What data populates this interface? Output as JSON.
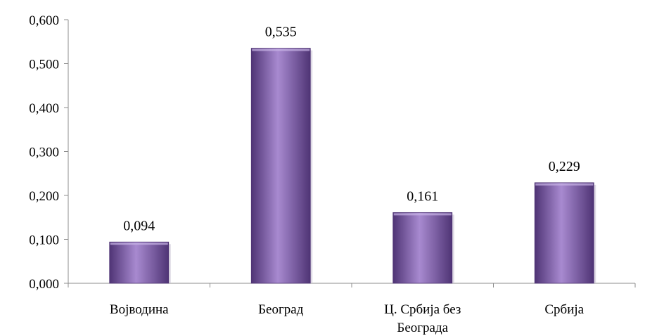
{
  "chart_data": {
    "type": "bar",
    "categories": [
      "Војводина",
      "Београд",
      "Ц. Србија без Београда",
      "Србија"
    ],
    "category_lines": [
      [
        "Војводина"
      ],
      [
        "Београд"
      ],
      [
        "Ц. Србија без",
        "Београда"
      ],
      [
        "Србија"
      ]
    ],
    "values": [
      0.094,
      0.535,
      0.161,
      0.229
    ],
    "data_labels": [
      "0,094",
      "0,535",
      "0,161",
      "0,229"
    ],
    "ylim": [
      0,
      0.6
    ],
    "yticks": [
      0,
      0.1,
      0.2,
      0.3,
      0.4,
      0.5,
      0.6
    ],
    "ytick_labels": [
      "0,000",
      "0,100",
      "0,200",
      "0,300",
      "0,400",
      "0,500",
      "0,600"
    ],
    "grid": false,
    "legend": "none",
    "bar_color": "#7e5aa8",
    "bar_color_light": "#a88ad0",
    "bar_color_dark": "#4f3475"
  }
}
